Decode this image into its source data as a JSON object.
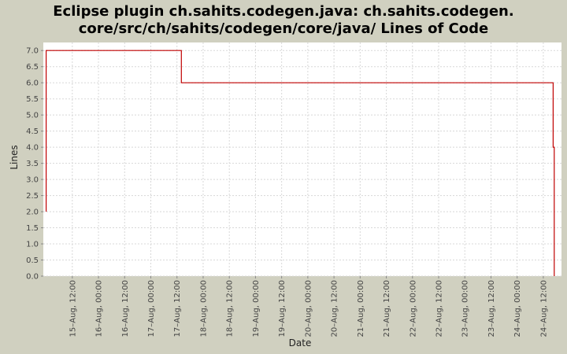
{
  "chart_data": {
    "type": "line",
    "title_lines": [
      "Eclipse plugin ch.sahits.codegen.java: ch.sahits.codegen.",
      "core/src/ch/sahits/codegen/core/java/ Lines of Code"
    ],
    "xlabel": "Date",
    "ylabel": "Lines",
    "ylim": [
      0,
      7.25
    ],
    "yticks": [
      0.0,
      0.5,
      1.0,
      1.5,
      2.0,
      2.5,
      3.0,
      3.5,
      4.0,
      4.5,
      5.0,
      5.5,
      6.0,
      6.5,
      7.0
    ],
    "xlim": [
      "2008-08-14T22:42",
      "2008-08-24T20:20"
    ],
    "xticks": [
      {
        "t": "2008-08-15T12:00",
        "label": "15–Aug, 12:00"
      },
      {
        "t": "2008-08-16T00:00",
        "label": "16–Aug, 00:00"
      },
      {
        "t": "2008-08-16T12:00",
        "label": "16–Aug, 12:00"
      },
      {
        "t": "2008-08-17T00:00",
        "label": "17–Aug, 00:00"
      },
      {
        "t": "2008-08-17T12:00",
        "label": "17–Aug, 12:00"
      },
      {
        "t": "2008-08-18T00:00",
        "label": "18–Aug, 00:00"
      },
      {
        "t": "2008-08-18T12:00",
        "label": "18–Aug, 12:00"
      },
      {
        "t": "2008-08-19T00:00",
        "label": "19–Aug, 00:00"
      },
      {
        "t": "2008-08-19T12:00",
        "label": "19–Aug, 12:00"
      },
      {
        "t": "2008-08-20T00:00",
        "label": "20–Aug, 00:00"
      },
      {
        "t": "2008-08-20T12:00",
        "label": "20–Aug, 12:00"
      },
      {
        "t": "2008-08-21T00:00",
        "label": "21–Aug, 00:00"
      },
      {
        "t": "2008-08-21T12:00",
        "label": "21–Aug, 12:00"
      },
      {
        "t": "2008-08-22T00:00",
        "label": "22–Aug, 00:00"
      },
      {
        "t": "2008-08-22T12:00",
        "label": "22–Aug, 12:00"
      },
      {
        "t": "2008-08-23T00:00",
        "label": "23–Aug, 00:00"
      },
      {
        "t": "2008-08-23T12:00",
        "label": "23–Aug, 12:00"
      },
      {
        "t": "2008-08-24T00:00",
        "label": "24–Aug, 00:00"
      },
      {
        "t": "2008-08-24T12:00",
        "label": "24–Aug, 12:00"
      }
    ],
    "series": [
      {
        "color": "#c00000",
        "step": true,
        "points": [
          {
            "t": "2008-08-15T00:00",
            "y": 2
          },
          {
            "t": "2008-08-15T00:00",
            "y": 7
          },
          {
            "t": "2008-08-17T14:00",
            "y": 7
          },
          {
            "t": "2008-08-17T14:00",
            "y": 6
          },
          {
            "t": "2008-08-24T16:30",
            "y": 6
          },
          {
            "t": "2008-08-24T16:30",
            "y": 4
          },
          {
            "t": "2008-08-24T17:00",
            "y": 4
          },
          {
            "t": "2008-08-24T17:00",
            "y": 0
          }
        ]
      }
    ],
    "grid": true,
    "background": "#ffffff",
    "page_background": "#d0d0c0"
  }
}
